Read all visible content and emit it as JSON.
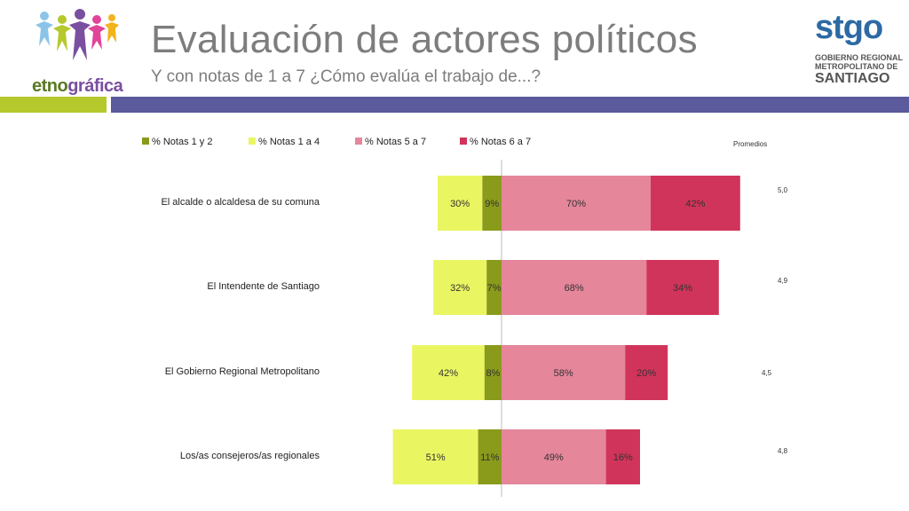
{
  "header": {
    "title": "Evaluación de actores políticos",
    "subtitle": "Y con notas de 1 a 7 ¿Cómo evalúa el trabajo de...?"
  },
  "logos": {
    "left_brand_part1": "etno",
    "left_brand_part2": "gráfica",
    "right_brand": "stgo",
    "right_org_line1": "GOBIERNO REGIONAL",
    "right_org_line2": "METROPOLITANO DE",
    "right_city": "SANTIAGO"
  },
  "colors": {
    "notas_1_2": "#8a9a1b",
    "notas_1_4": "#eaf562",
    "notas_5_7": "#e5869b",
    "notas_6_7": "#d1345a",
    "band_green": "#b5c92c",
    "band_purple": "#5a5a9c",
    "title_gray": "#7d7d7d"
  },
  "chart_data": {
    "type": "bar",
    "orientation": "horizontal-diverging",
    "categories": [
      "El alcalde o alcaldesa de su comuna",
      "El Intendente de Santiago",
      "El Gobierno Regional Metropolitano",
      "Los/as consejeros/as regionales"
    ],
    "series": [
      {
        "name": "% Notas 1 y 2",
        "values": [
          9,
          7,
          8,
          11
        ],
        "labels": [
          "9%",
          "7%",
          "8%",
          "11%"
        ],
        "side": "left",
        "colorKey": "notas_1_2"
      },
      {
        "name": "% Notas 1 a 4",
        "values": [
          30,
          32,
          42,
          51
        ],
        "labels": [
          "30%",
          "32%",
          "42%",
          "51%"
        ],
        "side": "left",
        "colorKey": "notas_1_4"
      },
      {
        "name": "% Notas 5 a 7",
        "values": [
          70,
          68,
          58,
          49
        ],
        "labels": [
          "70%",
          "68%",
          "58%",
          "49%"
        ],
        "side": "right",
        "colorKey": "notas_5_7"
      },
      {
        "name": "% Notas 6 a 7",
        "values": [
          42,
          34,
          20,
          16
        ],
        "labels": [
          "42%",
          "34%",
          "20%",
          "16%"
        ],
        "side": "right",
        "colorKey": "notas_6_7"
      }
    ],
    "promedios_title": "Promedios",
    "promedios": [
      "5,0",
      "4,9",
      "4,5",
      "4,8"
    ],
    "legend_position": "top"
  }
}
